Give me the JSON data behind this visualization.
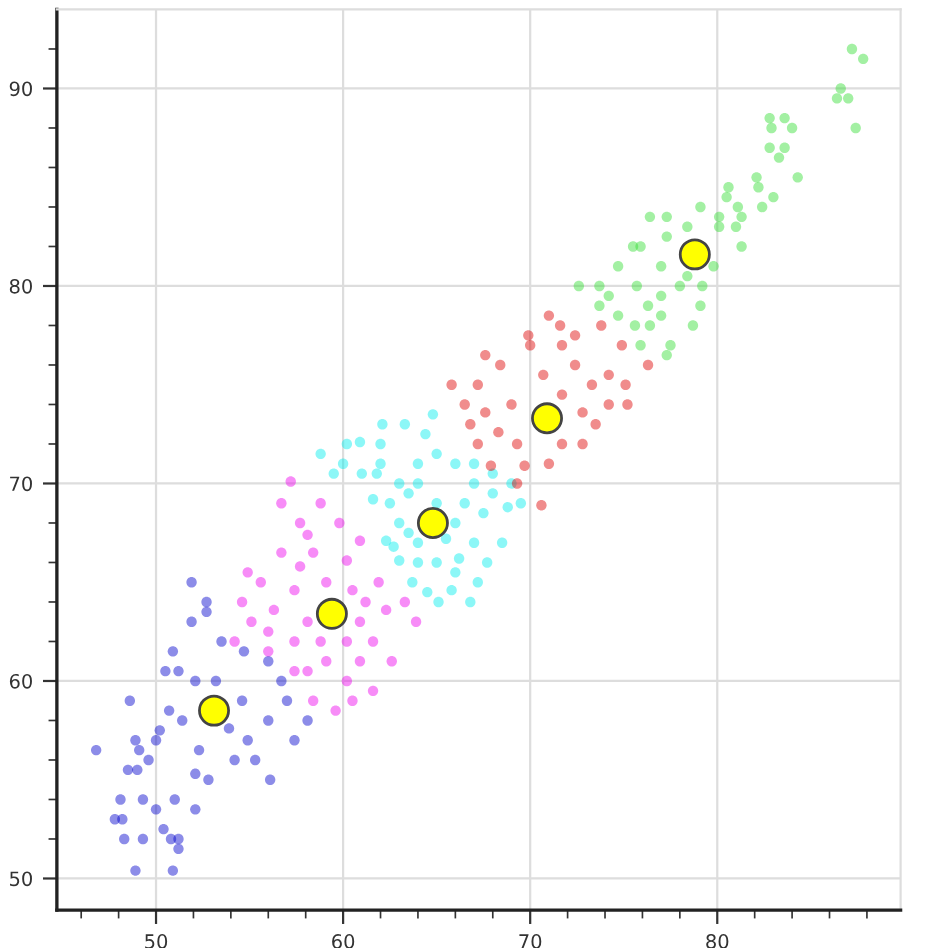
{
  "chart_data": {
    "type": "scatter",
    "marker": "circle",
    "grid": true,
    "legend": false,
    "xlim": [
      44.7,
      89.8
    ],
    "ylim": [
      48.4,
      94
    ],
    "xticks": [
      {
        "value": 46,
        "label": null
      },
      {
        "value": 48,
        "label": null
      },
      50,
      {
        "value": 52,
        "label": null
      },
      {
        "value": 54,
        "label": null
      },
      {
        "value": 56,
        "label": null
      },
      {
        "value": 58,
        "label": null
      },
      60,
      {
        "value": 62,
        "label": null
      },
      {
        "value": 64,
        "label": null
      },
      {
        "value": 66,
        "label": null
      },
      {
        "value": 68,
        "label": null
      },
      70,
      {
        "value": 72,
        "label": null
      },
      {
        "value": 74,
        "label": null
      },
      {
        "value": 76,
        "label": null
      },
      {
        "value": 78,
        "label": null
      },
      80,
      {
        "value": 82,
        "label": null
      },
      {
        "value": 84,
        "label": null
      },
      {
        "value": 86,
        "label": null
      },
      {
        "value": 88,
        "label": null
      }
    ],
    "yticks": [
      50,
      {
        "value": 52,
        "label": null
      },
      {
        "value": 54,
        "label": null
      },
      {
        "value": 56,
        "label": null
      },
      {
        "value": 58,
        "label": null
      },
      60,
      {
        "value": 62,
        "label": null
      },
      {
        "value": 64,
        "label": null
      },
      {
        "value": 66,
        "label": null
      },
      {
        "value": 68,
        "label": null
      },
      70,
      {
        "value": 72,
        "label": null
      },
      {
        "value": 74,
        "label": null
      },
      {
        "value": 76,
        "label": null
      },
      {
        "value": 78,
        "label": null
      },
      80,
      {
        "value": 82,
        "label": null
      },
      {
        "value": 84,
        "label": null
      },
      {
        "value": 86,
        "label": null
      },
      {
        "value": 88,
        "label": null
      },
      90,
      {
        "value": 92,
        "label": null
      }
    ],
    "series": [
      {
        "color": "#0000cc",
        "x": [
          46.8,
          48.6,
          48.9,
          50.9,
          47.8,
          48.2,
          48.1,
          49.3,
          48.3,
          49.3,
          51.2,
          50.8,
          51.2,
          50.4,
          50.0,
          52.1,
          51.0,
          48.5,
          49.0,
          48.9,
          50.0,
          51.9,
          52.7,
          52.7,
          51.9,
          50.9,
          50.5,
          51.2,
          53.2,
          56.1,
          54.2,
          57.4,
          58.1,
          57.0,
          56.0,
          54.7,
          53.5,
          52.8,
          52.1,
          52.3,
          51.4,
          50.7,
          54.9,
          55.3,
          56.7,
          52.1,
          54.6,
          53.9,
          56.0,
          49.6,
          49.1,
          50.2
        ],
        "values": [
          56.5,
          59.0,
          50.4,
          50.4,
          53.0,
          53.0,
          54.0,
          54.0,
          52.0,
          52.0,
          52.0,
          52.0,
          51.5,
          52.5,
          53.5,
          53.5,
          54.0,
          55.5,
          55.5,
          57.0,
          57.0,
          65.0,
          64.0,
          63.5,
          63.0,
          61.5,
          60.5,
          60.5,
          60.0,
          55.0,
          56.0,
          57.0,
          58.0,
          59.0,
          61.0,
          61.5,
          62.0,
          55.0,
          55.3,
          56.5,
          58.0,
          58.5,
          57.0,
          56.0,
          60.0,
          60.0,
          59.0,
          57.6,
          58.0,
          56.0,
          56.5,
          57.5
        ]
      },
      {
        "color": "#ee00ee",
        "x": [
          57.2,
          56.7,
          57.7,
          54.9,
          54.6,
          55.1,
          54.2,
          56.0,
          57.4,
          58.4,
          59.6,
          61.6,
          62.6,
          63.9,
          63.3,
          61.9,
          60.9,
          59.8,
          58.8,
          56.7,
          58.4,
          60.2,
          59.1,
          57.4,
          56.3,
          58.1,
          60.9,
          62.3,
          61.6,
          60.2,
          58.8,
          57.4,
          56.0,
          59.1,
          60.9,
          58.1,
          60.2,
          60.5,
          61.2,
          57.7,
          60.5,
          55.6,
          58.1
        ],
        "values": [
          70.1,
          69.0,
          68.0,
          65.5,
          64.0,
          63.0,
          62.0,
          61.5,
          60.5,
          59.0,
          58.5,
          59.5,
          61.0,
          63.0,
          64.0,
          65.0,
          67.1,
          68.0,
          69.0,
          66.5,
          66.5,
          66.1,
          65.0,
          64.6,
          63.6,
          63.0,
          63.0,
          63.6,
          62.0,
          62.0,
          62.0,
          62.0,
          62.5,
          61.0,
          61.0,
          60.5,
          60.0,
          59.0,
          64.0,
          65.8,
          64.6,
          65.0,
          67.4
        ]
      },
      {
        "color": "#00eeee",
        "x": [
          58.8,
          60.2,
          60.9,
          62.1,
          63.3,
          64.4,
          62.0,
          61.0,
          61.8,
          61.6,
          62.3,
          63.0,
          63.7,
          64.5,
          65.1,
          66.8,
          65.8,
          67.2,
          67.7,
          68.5,
          68.8,
          69.5,
          68.0,
          67.0,
          66.0,
          65.0,
          64.0,
          63.0,
          62.5,
          63.0,
          64.0,
          65.0,
          66.0,
          67.0,
          66.0,
          65.0,
          64.0,
          63.5,
          66.5,
          67.5,
          64.0,
          62.7,
          63.5,
          65.5,
          66.2,
          67.0,
          68.0,
          69.0,
          64.8,
          60.0,
          59.5,
          62.0
        ],
        "values": [
          71.5,
          72.0,
          72.1,
          73.0,
          73.0,
          72.5,
          71.0,
          70.5,
          70.5,
          69.2,
          67.1,
          66.1,
          65.0,
          64.5,
          64.0,
          64.0,
          64.6,
          65.0,
          66.0,
          67.0,
          68.8,
          69.0,
          69.5,
          70.0,
          71.0,
          71.5,
          71.0,
          70.0,
          69.0,
          68.0,
          67.0,
          66.0,
          65.5,
          67.0,
          68.0,
          69.0,
          70.0,
          69.5,
          69.0,
          68.5,
          66.0,
          66.8,
          67.5,
          67.2,
          66.2,
          71.0,
          70.5,
          70.0,
          73.5,
          71.0,
          70.5,
          72.0
        ]
      },
      {
        "color": "#dd0000",
        "x": [
          71.0,
          71.6,
          73.8,
          71.7,
          74.9,
          76.3,
          75.1,
          75.2,
          73.5,
          72.8,
          71.0,
          67.6,
          67.2,
          68.4,
          70.0,
          72.4,
          70.7,
          72.4,
          74.2,
          71.7,
          69.0,
          67.6,
          68.3,
          69.3,
          67.9,
          69.7,
          65.8,
          66.5,
          66.8,
          67.2,
          70.6,
          69.3,
          74.2,
          71.7,
          73.3,
          69.9,
          72.8
        ],
        "values": [
          78.5,
          78.0,
          78.0,
          77.0,
          77.0,
          76.0,
          75.0,
          74.0,
          73.0,
          72.0,
          71.0,
          76.5,
          75.0,
          76.0,
          77.0,
          77.5,
          75.5,
          76.0,
          75.5,
          74.5,
          74.0,
          73.6,
          72.6,
          72.0,
          70.9,
          70.9,
          75.0,
          74.0,
          73.0,
          72.0,
          68.9,
          70.0,
          74.0,
          72.0,
          75.0,
          77.5,
          73.6
        ]
      },
      {
        "color": "#33dd33",
        "x": [
          87.2,
          87.8,
          86.6,
          86.4,
          87.0,
          87.4,
          82.8,
          83.6,
          82.9,
          84.0,
          82.8,
          83.6,
          83.3,
          82.1,
          84.3,
          80.6,
          82.2,
          83.0,
          80.5,
          81.1,
          82.4,
          76.4,
          77.3,
          79.1,
          80.1,
          81.3,
          78.4,
          80.1,
          81.0,
          77.3,
          81.3,
          75.5,
          75.9,
          74.7,
          79.8,
          72.6,
          73.7,
          75.7,
          78.0,
          79.2,
          74.2,
          77.0,
          73.7,
          76.3,
          79.1,
          74.7,
          77.0,
          75.6,
          76.4,
          78.7,
          75.9,
          77.5,
          77.3,
          77.0,
          78.4
        ],
        "values": [
          92.0,
          91.5,
          90.0,
          89.5,
          89.5,
          88.0,
          88.5,
          88.5,
          88.0,
          88.0,
          87.0,
          87.0,
          86.5,
          85.5,
          85.5,
          85.0,
          85.0,
          84.5,
          84.5,
          84.0,
          84.0,
          83.5,
          83.5,
          84.0,
          83.5,
          83.5,
          83.0,
          83.0,
          83.0,
          82.5,
          82.0,
          82.0,
          82.0,
          81.0,
          81.0,
          80.0,
          80.0,
          80.0,
          80.0,
          80.0,
          79.5,
          79.5,
          79.0,
          79.0,
          79.0,
          78.5,
          78.5,
          78.0,
          78.0,
          78.0,
          77.0,
          77.0,
          76.5,
          81.0,
          80.5
        ]
      },
      {
        "color": "#ffff00",
        "x": [
          53.1,
          59.4,
          64.8,
          70.9,
          78.8
        ],
        "values": [
          58.5,
          63.4,
          68.0,
          73.3,
          81.6
        ]
      }
    ]
  }
}
